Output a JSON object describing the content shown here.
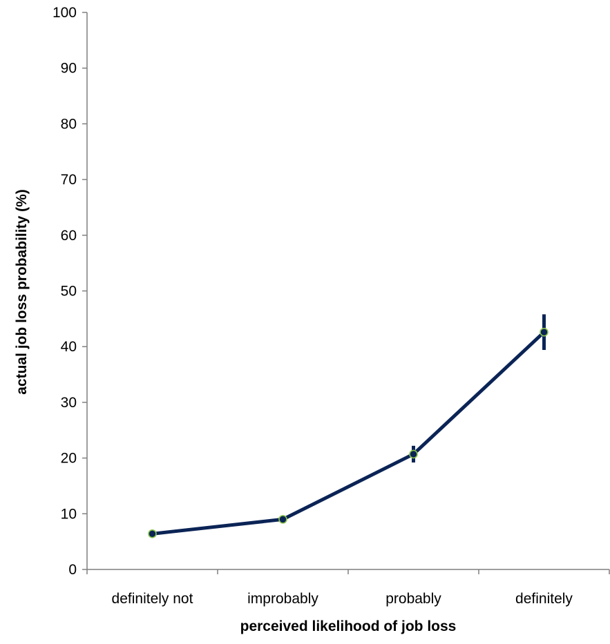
{
  "colors": {
    "line": "#0b2456",
    "marker_fill": "#0b2456",
    "marker_edge": "#8bc34a",
    "axis": "#7f7f7f",
    "text": "#000000"
  },
  "chart_data": {
    "type": "line",
    "title": "",
    "xlabel": "perceived likelihood of job loss",
    "ylabel": "actual job loss probability (%)",
    "categories": [
      "definitely not",
      "improbably",
      "probably",
      "definitely"
    ],
    "ylim": [
      0,
      100
    ],
    "yticks": [
      0,
      10,
      20,
      30,
      40,
      50,
      60,
      70,
      80,
      90,
      100
    ],
    "grid": false,
    "legend": "none",
    "series": [
      {
        "values": [
          6.4,
          9.0,
          20.7,
          42.6
        ],
        "error_low": [
          6.1,
          8.7,
          19.2,
          39.4
        ],
        "error_high": [
          6.7,
          9.3,
          22.2,
          45.8
        ]
      }
    ]
  }
}
